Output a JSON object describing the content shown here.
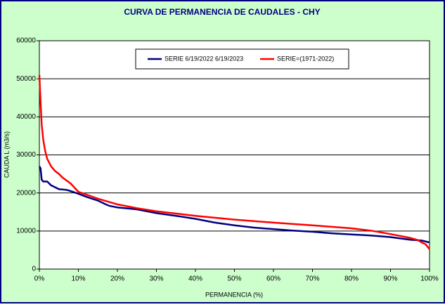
{
  "chart_data": {
    "type": "line",
    "title": "CURVA DE PERMANENCIA DE CAUDALES - CHY",
    "xlabel": "PERMANENCIA (%)",
    "ylabel": "CAUDA L (m3/s)",
    "xlim": [
      0,
      100
    ],
    "ylim": [
      0,
      60000
    ],
    "xticks": [
      {
        "value": 0,
        "label": "0%"
      },
      {
        "value": 10,
        "label": "10%"
      },
      {
        "value": 20,
        "label": "20%"
      },
      {
        "value": 30,
        "label": "30%"
      },
      {
        "value": 40,
        "label": "40%"
      },
      {
        "value": 50,
        "label": "50%"
      },
      {
        "value": 60,
        "label": "60%"
      },
      {
        "value": 70,
        "label": "70%"
      },
      {
        "value": 80,
        "label": "80%"
      },
      {
        "value": 90,
        "label": "90%"
      },
      {
        "value": 100,
        "label": "100%"
      }
    ],
    "yticks": [
      0,
      10000,
      20000,
      30000,
      40000,
      50000,
      60000
    ],
    "grid": true,
    "legend": "top",
    "series": [
      {
        "name": "SERIE 6/19/2022 6/19/2023",
        "color": "#000080",
        "x": [
          0,
          0.3,
          0.6,
          1,
          2,
          3,
          4,
          5,
          7,
          8,
          10,
          12,
          15,
          17,
          18,
          20,
          25,
          30,
          35,
          40,
          45,
          50,
          55,
          60,
          65,
          70,
          75,
          80,
          85,
          90,
          95,
          98,
          100
        ],
        "values": [
          27000,
          26500,
          23500,
          23000,
          23000,
          22000,
          21500,
          21000,
          20800,
          20500,
          19800,
          19000,
          18000,
          17000,
          16600,
          16200,
          15700,
          14700,
          14000,
          13200,
          12200,
          11500,
          10900,
          10500,
          10100,
          9800,
          9400,
          9100,
          8800,
          8400,
          7700,
          7500,
          7000
        ]
      },
      {
        "name": "SERIE=(1971-2022)",
        "color": "#ff0000",
        "x": [
          0,
          0.3,
          0.6,
          1,
          1.5,
          2,
          3,
          4,
          5,
          6,
          8,
          10,
          15,
          20,
          25,
          30,
          40,
          50,
          60,
          70,
          80,
          85,
          90,
          95,
          97,
          98,
          99,
          100
        ],
        "values": [
          51000,
          44000,
          38000,
          34000,
          31000,
          29000,
          27000,
          25800,
          25000,
          24000,
          22500,
          20300,
          18500,
          17000,
          16000,
          15200,
          14000,
          13000,
          12200,
          11500,
          10700,
          10100,
          9200,
          8200,
          7600,
          7000,
          6500,
          5200
        ]
      }
    ]
  }
}
